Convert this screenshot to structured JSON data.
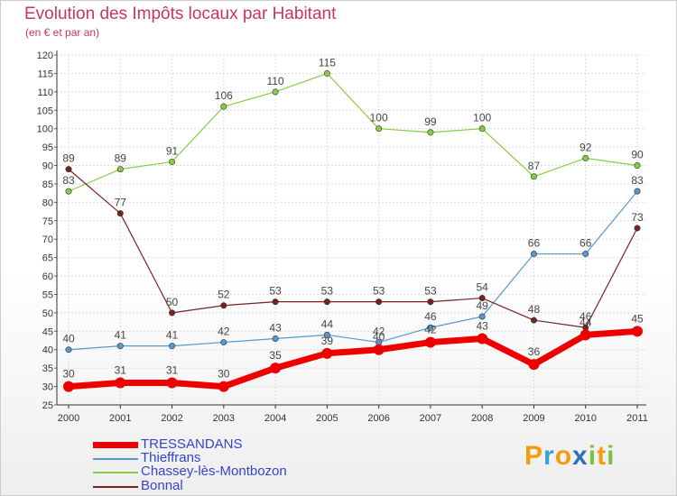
{
  "header": {
    "title": "Evolution des Impôts locaux par Habitant",
    "subtitle": "(en € et par an)"
  },
  "logo": {
    "text": "Proxiti",
    "letters": [
      "P",
      "r",
      "o",
      "x",
      "i",
      "t",
      "i"
    ]
  },
  "colors": {
    "title": "#cc3366",
    "legend_text": "#3344cc",
    "grid": "#dddddd",
    "axis": "#333333",
    "logo": [
      "#f39c12",
      "#3aa0d8",
      "#f39c12",
      "#2a70b8",
      "#7cc242",
      "#f39c12",
      "#7cc242"
    ]
  },
  "chart_data": {
    "type": "line",
    "title": "Evolution des Impôts locaux par Habitant",
    "subtitle": "(en € et par an)",
    "xlabel": "",
    "ylabel": "",
    "ylim": [
      25,
      120
    ],
    "yticks": [
      25,
      30,
      35,
      40,
      45,
      50,
      55,
      60,
      65,
      70,
      75,
      80,
      85,
      90,
      95,
      100,
      105,
      110,
      115,
      120
    ],
    "categories": [
      "2000",
      "2001",
      "2002",
      "2003",
      "2004",
      "2005",
      "2006",
      "2007",
      "2008",
      "2009",
      "2010",
      "2011"
    ],
    "series": [
      {
        "name": "TRESSANDANS",
        "color": "#ee0000",
        "bold": true,
        "values": [
          30,
          31,
          31,
          30,
          35,
          39,
          40,
          42,
          43,
          36,
          44,
          45
        ]
      },
      {
        "name": "Thieffrans",
        "color": "#5599cc",
        "bold": false,
        "values": [
          40,
          41,
          41,
          42,
          43,
          44,
          42,
          46,
          49,
          66,
          66,
          83
        ]
      },
      {
        "name": "Chassey-lès-Montbozon",
        "color": "#88cc44",
        "bold": false,
        "values": [
          83,
          89,
          91,
          106,
          110,
          115,
          100,
          99,
          100,
          87,
          92,
          90
        ]
      },
      {
        "name": "Bonnal",
        "color": "#772222",
        "bold": false,
        "values": [
          89,
          77,
          50,
          52,
          53,
          53,
          53,
          53,
          54,
          48,
          46,
          73
        ]
      }
    ],
    "legend_position": "bottom-left",
    "grid": true
  }
}
